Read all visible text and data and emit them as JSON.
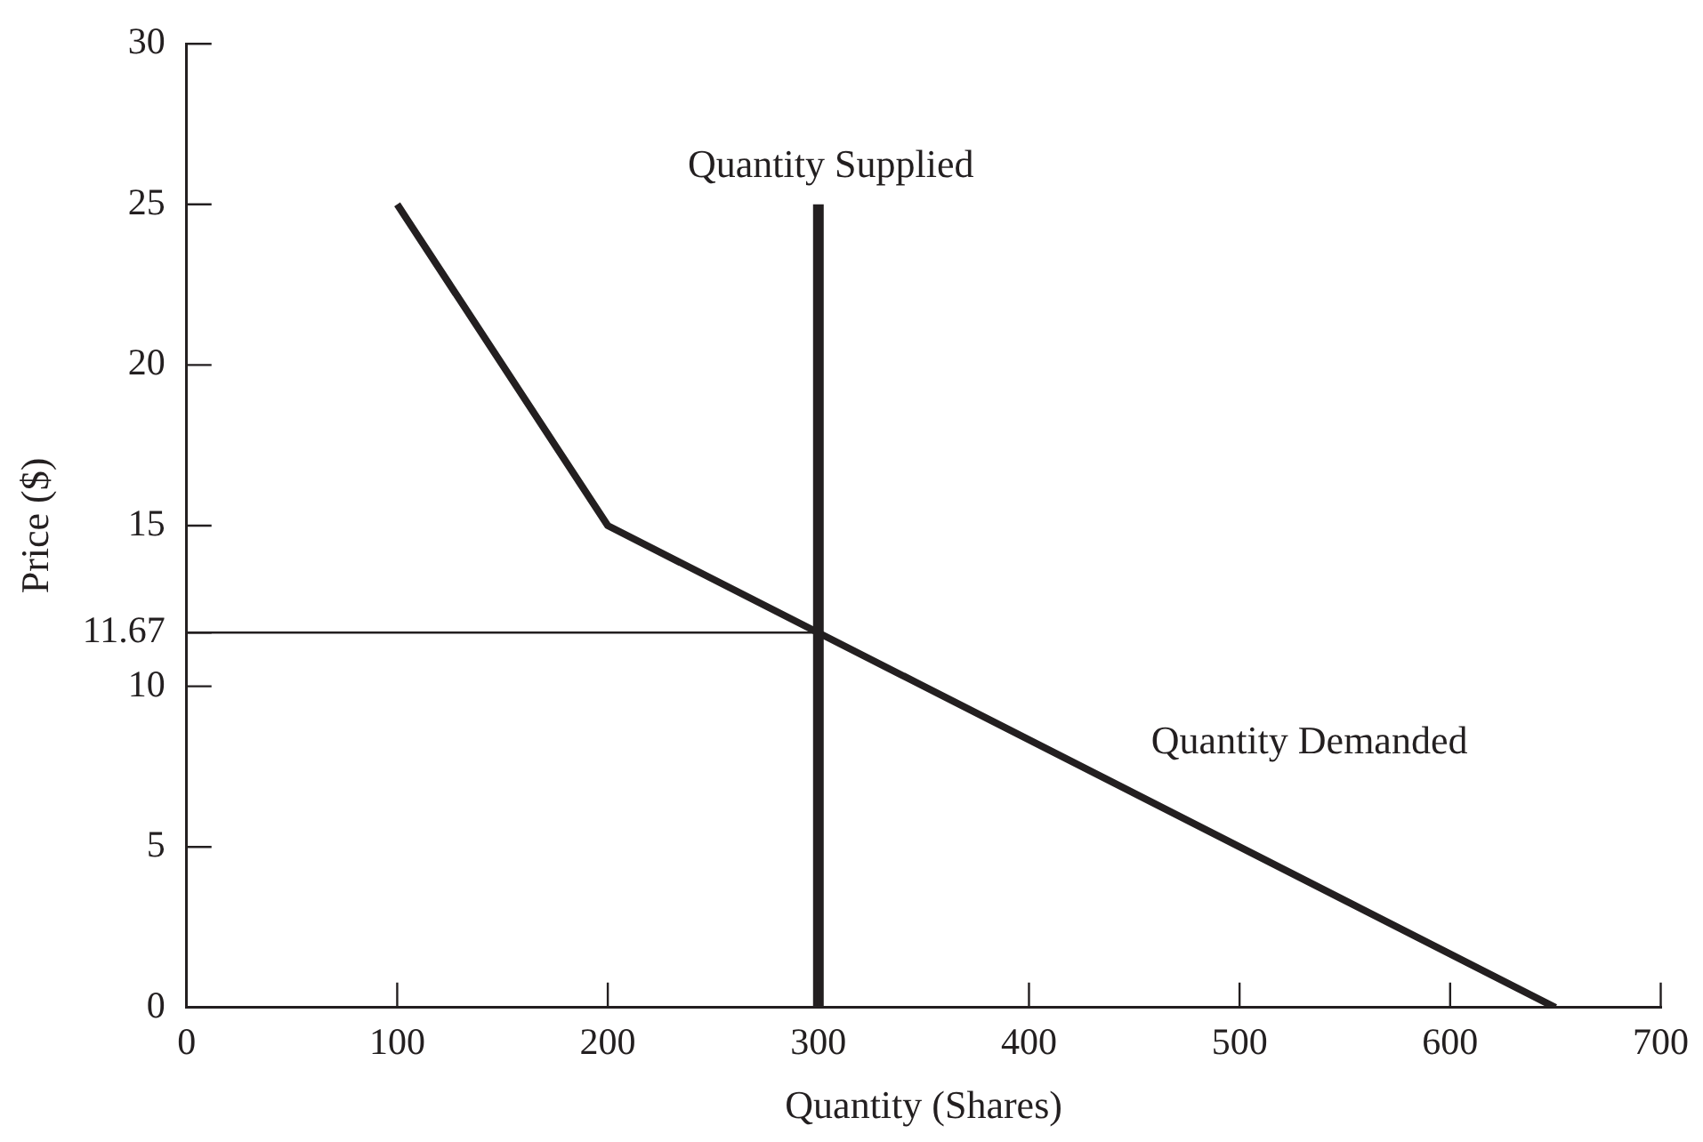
{
  "chart_data": {
    "type": "line",
    "xlabel": "Quantity (Shares)",
    "ylabel": "Price ($)",
    "xlim": [
      0,
      700
    ],
    "xticks": [
      0,
      100,
      200,
      300,
      400,
      500,
      600,
      700
    ],
    "ylim": [
      0,
      30
    ],
    "yticks": [
      0,
      5,
      10,
      11.67,
      15,
      20,
      25,
      30
    ],
    "grid": false,
    "legend": false,
    "marker": "none",
    "line_style": "solid",
    "series": [
      {
        "name": "Quantity Supplied",
        "color": "#231f20",
        "x": [
          300,
          300
        ],
        "values": [
          0,
          25
        ]
      },
      {
        "name": "Quantity Demanded",
        "color": "#231f20",
        "x": [
          100,
          200,
          650
        ],
        "values": [
          25,
          15,
          0
        ]
      },
      {
        "color": "#231f20",
        "x": [
          0,
          300
        ],
        "values": [
          11.67,
          11.67
        ]
      }
    ]
  }
}
